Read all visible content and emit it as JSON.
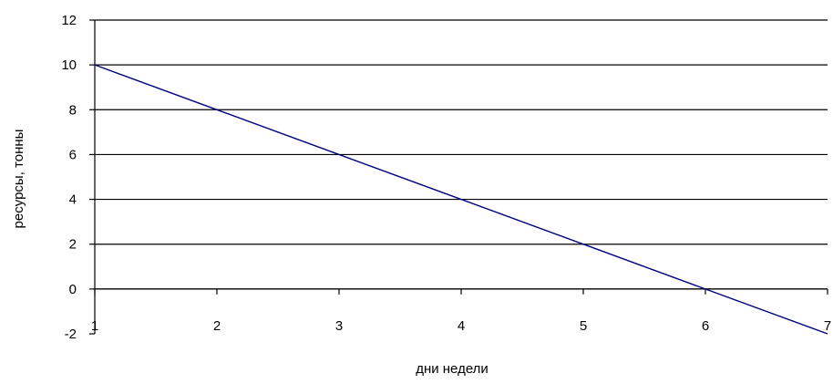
{
  "chart_data": {
    "type": "line",
    "title": "",
    "xlabel": "дни недели",
    "ylabel": "ресурсы, тонны",
    "x": [
      1,
      2,
      3,
      4,
      5,
      6,
      7
    ],
    "x_ticks": [
      "1",
      "2",
      "3",
      "4",
      "5",
      "6",
      "7"
    ],
    "y_ticks": [
      "12",
      "10",
      "8",
      "6",
      "4",
      "2",
      "0",
      "-2"
    ],
    "series": [
      {
        "values": [
          10,
          8,
          6,
          4,
          2,
          0,
          -2
        ]
      }
    ],
    "xlim": [
      1,
      7
    ],
    "ylim": [
      -2,
      12
    ],
    "grid": "horizontal",
    "legend": "none",
    "colors": {
      "line": "#000080",
      "grid": "#000000",
      "axis": "#000000"
    }
  }
}
